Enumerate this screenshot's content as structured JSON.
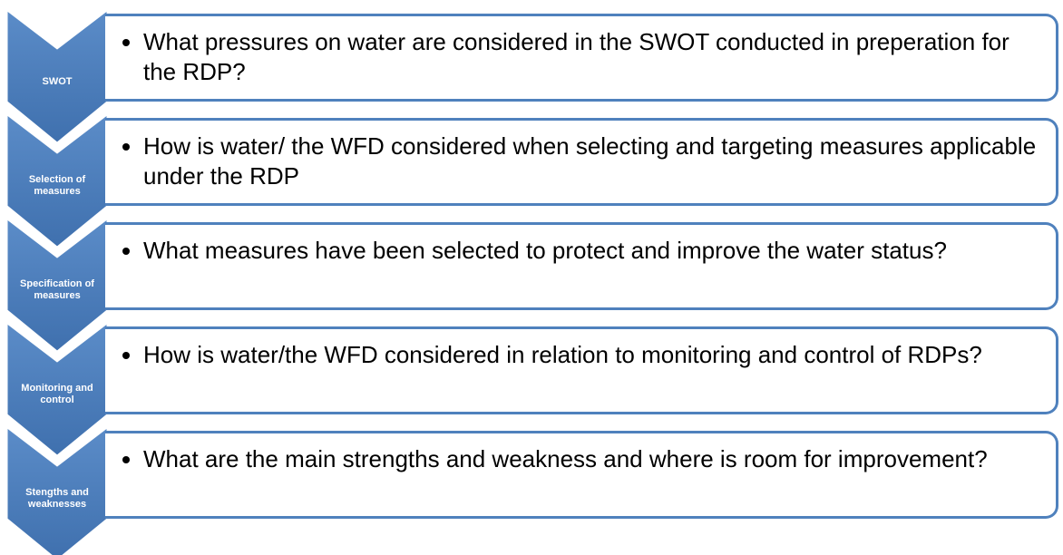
{
  "items": [
    {
      "label": "SWOT",
      "text": "What pressures on water are considered in the SWOT conducted in preperation for the RDP?"
    },
    {
      "label": "Selection of measures",
      "text": "How is water/ the WFD considered when selecting and targeting measures applicable under the RDP"
    },
    {
      "label": "Specification of measures",
      "text": "What measures have been selected to protect and improve the water status?"
    },
    {
      "label": "Monitoring and control",
      "text": "How is water/the WFD considered in relation to monitoring and control of RDPs?"
    },
    {
      "label": "Stengths and weaknesses",
      "text": "What are the main strengths and weakness and where is room for improvement?"
    }
  ]
}
